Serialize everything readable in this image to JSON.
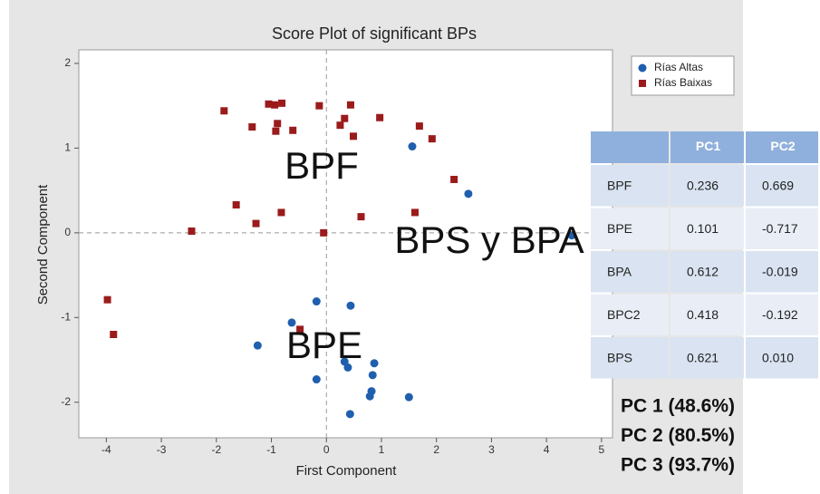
{
  "chart_data": {
    "type": "scatter",
    "title": "Score Plot of significant BPs",
    "x_label": "First Component",
    "y_label": "Second Component",
    "xlim": [
      -4.5,
      5.2
    ],
    "ylim": [
      -2.42,
      2.16
    ],
    "xticks": [
      -4,
      -3,
      -2,
      -1,
      0,
      1,
      2,
      3,
      4,
      5
    ],
    "yticks": [
      -2,
      -1,
      0,
      1,
      2
    ],
    "reference_lines": {
      "x": 0,
      "y": 0
    },
    "legend": "upper right",
    "series": [
      {
        "name": "Rías Altas",
        "color": "#1f5fae",
        "marker": "circle",
        "x": [
          1.56,
          2.58,
          4.46,
          -0.18,
          0.44,
          -0.63,
          -1.25,
          -0.18,
          0.33,
          0.39,
          0.87,
          0.84,
          0.82,
          0.79,
          1.5,
          0.43
        ],
        "values": [
          1.02,
          0.46,
          -0.03,
          -0.81,
          -0.86,
          -1.06,
          -1.33,
          -1.73,
          -1.52,
          -1.59,
          -1.54,
          -1.68,
          -1.87,
          -1.93,
          -1.94,
          -2.14
        ]
      },
      {
        "name": "Rías Baixas",
        "color": "#9b1b1b",
        "marker": "square",
        "x": [
          -1.86,
          -1.35,
          -1.05,
          -0.94,
          -0.81,
          -0.89,
          -0.92,
          -0.61,
          -0.13,
          0.44,
          0.33,
          0.25,
          0.49,
          0.97,
          1.69,
          1.92,
          2.32,
          -1.64,
          -1.28,
          -0.82,
          -2.45,
          -0.05,
          0.63,
          1.61,
          -3.98,
          -3.87,
          -0.48
        ],
        "values": [
          1.44,
          1.25,
          1.52,
          1.51,
          1.53,
          1.29,
          1.2,
          1.21,
          1.5,
          1.51,
          1.35,
          1.27,
          1.14,
          1.36,
          1.26,
          1.11,
          0.63,
          0.33,
          0.11,
          0.24,
          0.02,
          0.0,
          0.19,
          0.24,
          -0.79,
          -1.2,
          -1.14
        ]
      }
    ]
  },
  "overlays": [
    "BPF",
    "BPS y BPA",
    "BPE"
  ],
  "table": {
    "header": [
      "",
      "PC1",
      "PC2"
    ],
    "rows": [
      [
        "BPF",
        "0.236",
        "0.669"
      ],
      [
        "BPE",
        "0.101",
        "-0.717"
      ],
      [
        "BPA",
        "0.612",
        "-0.019"
      ],
      [
        "BPC2",
        "0.418",
        "-0.192"
      ],
      [
        "BPS",
        "0.621",
        "0.010"
      ]
    ]
  },
  "variance": [
    "PC 1 (48.6%)",
    "PC 2 (80.5%)",
    "PC 3 (93.7%)"
  ]
}
